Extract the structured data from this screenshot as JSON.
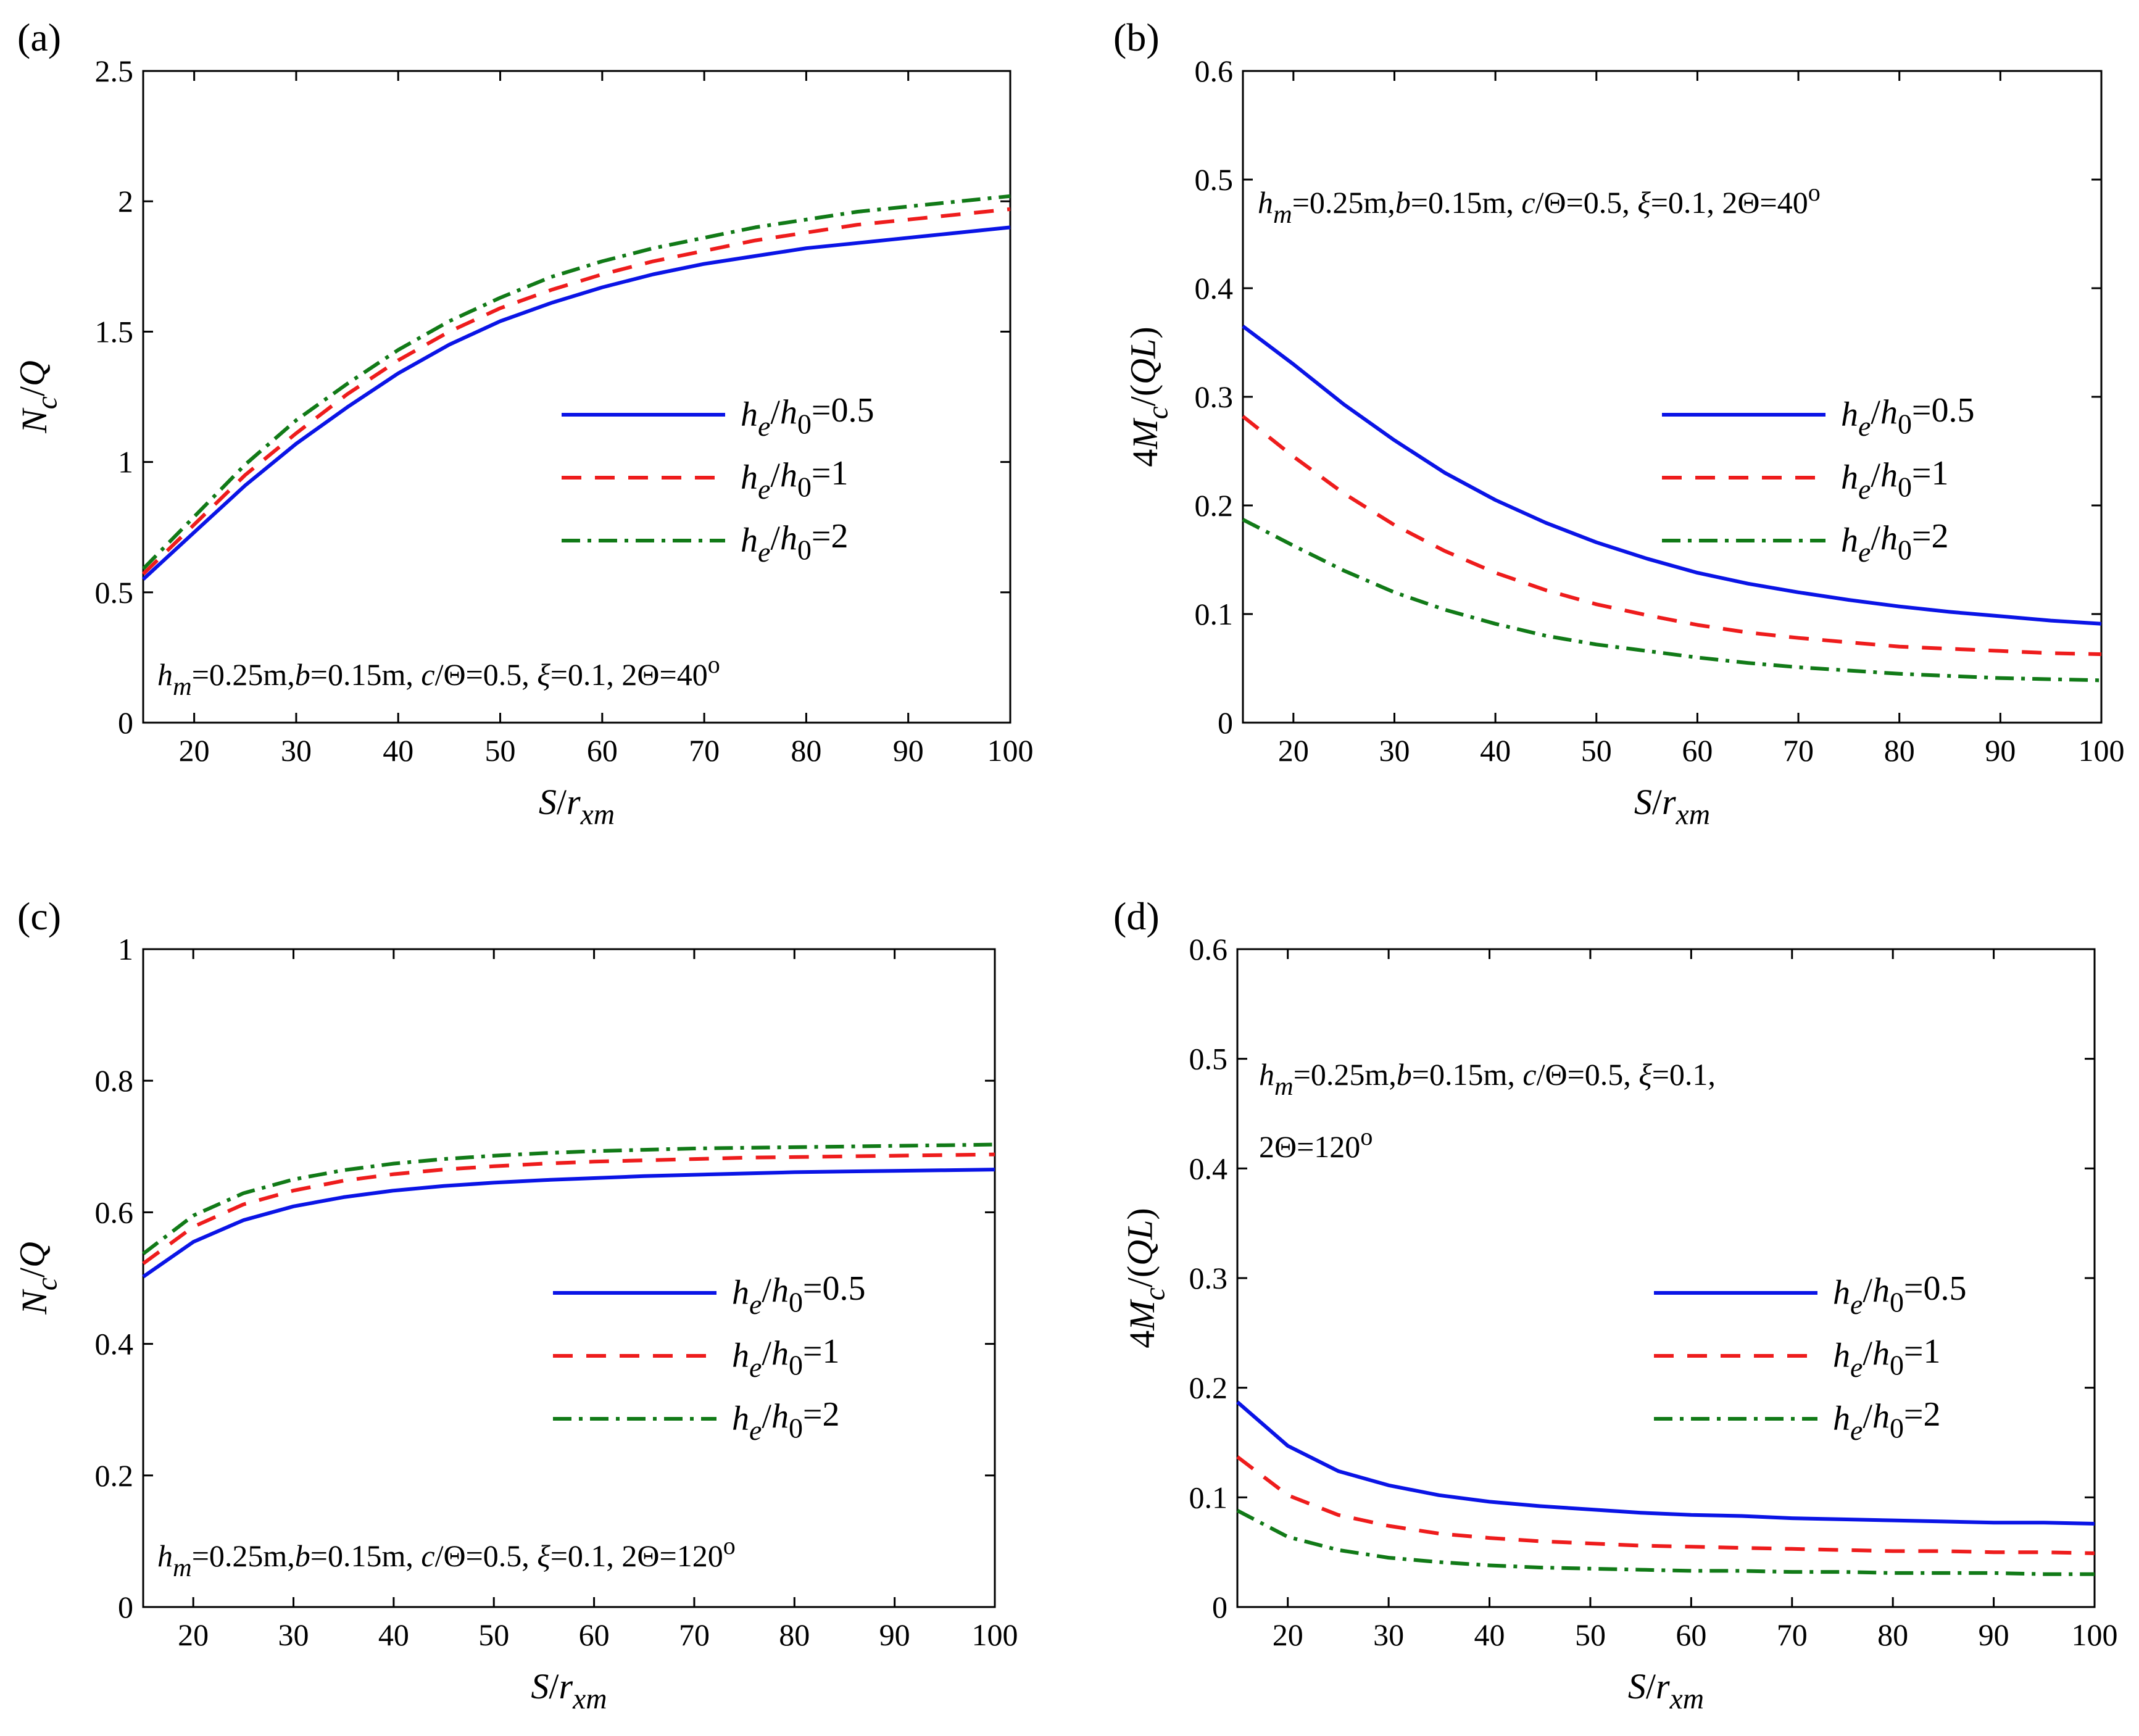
{
  "colors": {
    "blue": "#0a14e6",
    "red": "#ee1c1c",
    "green": "#117a17"
  },
  "chart_data": [
    {
      "type": "line",
      "panel_label": "(a)",
      "xlabel": "S/r_xm",
      "ylabel": "N_c/Q",
      "xlim": [
        15,
        100
      ],
      "ylim": [
        0,
        2.5
      ],
      "xticks": [
        "20",
        "30",
        "40",
        "50",
        "60",
        "70",
        "80",
        "90",
        "100"
      ],
      "yticks": [
        "0",
        "0.5",
        "1",
        "1.5",
        "2",
        "2.5"
      ],
      "annotation": "h_m=0.25m,b=0.15m, c/Θ=0.5, ξ=0.1, 2Θ=40°",
      "x": [
        15,
        20,
        25,
        30,
        35,
        40,
        45,
        50,
        55,
        60,
        65,
        70,
        75,
        80,
        85,
        90,
        95,
        100
      ],
      "series": [
        {
          "name": "h_e/h_0=0.5",
          "style": "solid",
          "values": [
            0.55,
            0.73,
            0.91,
            1.07,
            1.21,
            1.34,
            1.45,
            1.54,
            1.61,
            1.67,
            1.72,
            1.76,
            1.79,
            1.82,
            1.84,
            1.86,
            1.88,
            1.9
          ]
        },
        {
          "name": "h_e/h_0=1",
          "style": "dashed",
          "values": [
            0.57,
            0.76,
            0.95,
            1.11,
            1.26,
            1.39,
            1.5,
            1.59,
            1.66,
            1.72,
            1.77,
            1.81,
            1.85,
            1.88,
            1.91,
            1.93,
            1.95,
            1.97
          ]
        },
        {
          "name": "h_e/h_0=2",
          "style": "dashdot",
          "values": [
            0.59,
            0.79,
            0.99,
            1.16,
            1.3,
            1.43,
            1.54,
            1.63,
            1.71,
            1.77,
            1.82,
            1.86,
            1.9,
            1.93,
            1.96,
            1.98,
            2.0,
            2.02
          ]
        }
      ]
    },
    {
      "type": "line",
      "panel_label": "(b)",
      "xlabel": "S/r_xm",
      "ylabel": "4M_c/(QL)",
      "xlim": [
        15,
        100
      ],
      "ylim": [
        0,
        0.6
      ],
      "xticks": [
        "20",
        "30",
        "40",
        "50",
        "60",
        "70",
        "80",
        "90",
        "100"
      ],
      "yticks": [
        "0",
        "0.1",
        "0.2",
        "0.3",
        "0.4",
        "0.5",
        "0.6"
      ],
      "annotation": "h_m=0.25m,b=0.15m, c/Θ=0.5, ξ=0.1, 2Θ=40°",
      "x": [
        15,
        20,
        25,
        30,
        35,
        40,
        45,
        50,
        55,
        60,
        65,
        70,
        75,
        80,
        85,
        90,
        95,
        100
      ],
      "series": [
        {
          "name": "h_e/h_0=0.5",
          "style": "solid",
          "values": [
            0.365,
            0.33,
            0.293,
            0.26,
            0.23,
            0.205,
            0.184,
            0.166,
            0.151,
            0.138,
            0.128,
            0.12,
            0.113,
            0.107,
            0.102,
            0.098,
            0.094,
            0.091
          ]
        },
        {
          "name": "h_e/h_0=1",
          "style": "dashed",
          "values": [
            0.282,
            0.245,
            0.211,
            0.182,
            0.158,
            0.138,
            0.122,
            0.109,
            0.099,
            0.09,
            0.083,
            0.078,
            0.074,
            0.07,
            0.068,
            0.066,
            0.064,
            0.063
          ]
        },
        {
          "name": "h_e/h_0=2",
          "style": "dashdot",
          "values": [
            0.187,
            0.163,
            0.14,
            0.12,
            0.104,
            0.091,
            0.08,
            0.072,
            0.066,
            0.06,
            0.055,
            0.051,
            0.048,
            0.045,
            0.043,
            0.041,
            0.04,
            0.039
          ]
        }
      ]
    },
    {
      "type": "line",
      "panel_label": "(c)",
      "xlabel": "S/r_xm",
      "ylabel": "N_c/Q",
      "xlim": [
        15,
        100
      ],
      "ylim": [
        0,
        1
      ],
      "xticks": [
        "20",
        "30",
        "40",
        "50",
        "60",
        "70",
        "80",
        "90",
        "100"
      ],
      "yticks": [
        "0",
        "0.2",
        "0.4",
        "0.6",
        "0.8",
        "1"
      ],
      "annotation": "h_m=0.25m,b=0.15m, c/Θ=0.5, ξ=0.1, 2Θ=120°",
      "x": [
        15,
        20,
        25,
        30,
        35,
        40,
        45,
        50,
        55,
        60,
        65,
        70,
        75,
        80,
        85,
        90,
        95,
        100
      ],
      "series": [
        {
          "name": "h_e/h_0=0.5",
          "style": "solid",
          "values": [
            0.502,
            0.555,
            0.588,
            0.609,
            0.623,
            0.633,
            0.64,
            0.645,
            0.649,
            0.652,
            0.655,
            0.657,
            0.659,
            0.661,
            0.662,
            0.663,
            0.664,
            0.665
          ]
        },
        {
          "name": "h_e/h_0=1",
          "style": "dashed",
          "values": [
            0.522,
            0.578,
            0.612,
            0.633,
            0.648,
            0.658,
            0.665,
            0.67,
            0.674,
            0.677,
            0.679,
            0.681,
            0.683,
            0.684,
            0.685,
            0.686,
            0.687,
            0.688
          ]
        },
        {
          "name": "h_e/h_0=2",
          "style": "dashdot",
          "values": [
            0.537,
            0.595,
            0.629,
            0.65,
            0.664,
            0.674,
            0.681,
            0.686,
            0.69,
            0.693,
            0.695,
            0.697,
            0.698,
            0.699,
            0.7,
            0.701,
            0.702,
            0.703
          ]
        }
      ]
    },
    {
      "type": "line",
      "panel_label": "(d)",
      "xlabel": "S/r_xm",
      "ylabel": "4M_c/(QL)",
      "xlim": [
        15,
        100
      ],
      "ylim": [
        0,
        0.6
      ],
      "xticks": [
        "20",
        "30",
        "40",
        "50",
        "60",
        "70",
        "80",
        "90",
        "100"
      ],
      "yticks": [
        "0",
        "0.1",
        "0.2",
        "0.3",
        "0.4",
        "0.5",
        "0.6"
      ],
      "annotation": "h_m=0.25m,b=0.15m, c/Θ=0.5, ξ=0.1,",
      "annotation2": "2Θ=120°",
      "x": [
        15,
        20,
        25,
        30,
        35,
        40,
        45,
        50,
        55,
        60,
        65,
        70,
        75,
        80,
        85,
        90,
        95,
        100
      ],
      "series": [
        {
          "name": "h_e/h_0=0.5",
          "style": "solid",
          "values": [
            0.187,
            0.147,
            0.124,
            0.111,
            0.102,
            0.096,
            0.092,
            0.089,
            0.086,
            0.084,
            0.083,
            0.081,
            0.08,
            0.079,
            0.078,
            0.077,
            0.077,
            0.076
          ]
        },
        {
          "name": "h_e/h_0=1",
          "style": "dashed",
          "values": [
            0.137,
            0.102,
            0.084,
            0.074,
            0.067,
            0.063,
            0.06,
            0.058,
            0.056,
            0.055,
            0.054,
            0.053,
            0.052,
            0.051,
            0.051,
            0.05,
            0.05,
            0.049
          ]
        },
        {
          "name": "h_e/h_0=2",
          "style": "dashdot",
          "values": [
            0.088,
            0.064,
            0.052,
            0.045,
            0.041,
            0.038,
            0.036,
            0.035,
            0.034,
            0.033,
            0.033,
            0.032,
            0.032,
            0.031,
            0.031,
            0.031,
            0.03,
            0.03
          ]
        }
      ]
    }
  ]
}
